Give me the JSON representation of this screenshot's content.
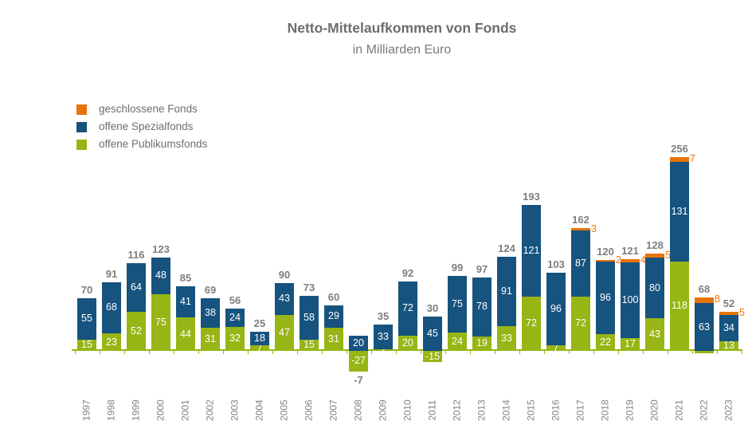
{
  "title": "Netto-Mittelaufkommen von Fonds",
  "subtitle": "in Milliarden Euro",
  "legend": [
    {
      "label": "geschlossene Fonds",
      "color": "#e87408",
      "swatch_icon": "orange-square-icon"
    },
    {
      "label": "offene Spezialfonds",
      "color": "#16537e",
      "swatch_icon": "blue-square-icon"
    },
    {
      "label": "offene Publikumsfonds",
      "color": "#97b514",
      "swatch_icon": "green-square-icon"
    }
  ],
  "chart_data": {
    "type": "bar",
    "stacked": true,
    "title": "Netto-Mittelaufkommen von Fonds",
    "subtitle": "in Milliarden Euro",
    "unit": "Milliarden Euro",
    "grid": false,
    "legend_position": "top-left",
    "ylim": [
      -35,
      275
    ],
    "axis_color": "#97b514",
    "label_colors": {
      "segment": "#ffffff",
      "total": "#7d7d7d",
      "year": "#828282"
    },
    "categories": [
      "1997",
      "1998",
      "1999",
      "2000",
      "2001",
      "2002",
      "2003",
      "2004",
      "2005",
      "2006",
      "2007",
      "2008",
      "2009",
      "2010",
      "2011",
      "2012",
      "2013",
      "2014",
      "2015",
      "2016",
      "2017",
      "2018",
      "2019",
      "2020",
      "2021",
      "2022",
      "2023"
    ],
    "series": [
      {
        "name": "offene Publikumsfonds",
        "color": "#97b514",
        "values": [
          15,
          23,
          52,
          75,
          44,
          31,
          32,
          7,
          47,
          15,
          31,
          -27,
          2,
          20,
          -15,
          24,
          19,
          33,
          72,
          7,
          72,
          22,
          17,
          43,
          118,
          -3,
          13
        ]
      },
      {
        "name": "offene Spezialfonds",
        "color": "#16537e",
        "values": [
          55,
          68,
          64,
          48,
          41,
          38,
          24,
          18,
          43,
          58,
          29,
          20,
          33,
          72,
          45,
          75,
          78,
          91,
          121,
          96,
          87,
          96,
          100,
          80,
          131,
          63,
          34
        ]
      },
      {
        "name": "geschlossene Fonds",
        "color": "#e87408",
        "values": [
          null,
          null,
          null,
          null,
          null,
          null,
          null,
          null,
          null,
          null,
          null,
          null,
          null,
          null,
          null,
          null,
          null,
          null,
          null,
          null,
          3,
          2,
          4,
          5,
          7,
          8,
          5
        ]
      }
    ],
    "totals": [
      70,
      91,
      116,
      123,
      85,
      69,
      56,
      25,
      90,
      73,
      60,
      -7,
      35,
      92,
      30,
      99,
      97,
      124,
      193,
      103,
      162,
      120,
      121,
      128,
      256,
      68,
      52
    ]
  }
}
